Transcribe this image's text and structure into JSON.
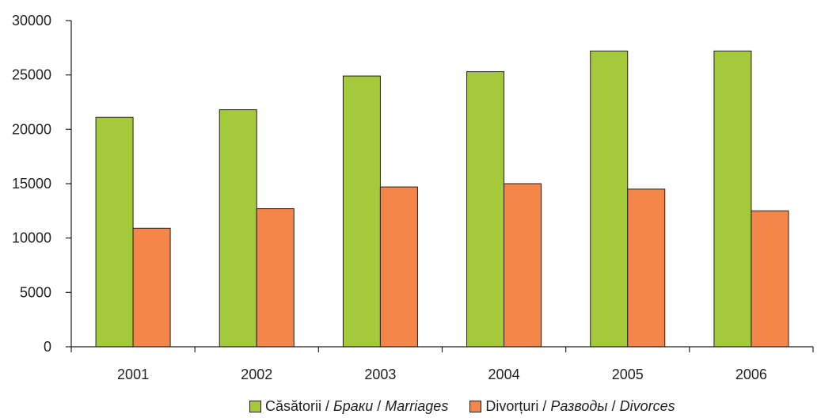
{
  "chart_data": {
    "type": "bar",
    "categories": [
      "2001",
      "2002",
      "2003",
      "2004",
      "2005",
      "2006"
    ],
    "series": [
      {
        "name": "Căsătorii / Браки / Marriages",
        "values": [
          21100,
          21800,
          24900,
          25300,
          27200,
          27200
        ],
        "color": "#a4c93b"
      },
      {
        "name": "Divorțuri / Разводы / Divorces",
        "values": [
          10900,
          12700,
          14700,
          15000,
          14500,
          12500
        ],
        "color": "#f4864a"
      }
    ],
    "ylim": [
      0,
      30000
    ],
    "yticks": [
      "0",
      "5000",
      "10000",
      "15000",
      "20000",
      "25000",
      "30000"
    ],
    "grid": false,
    "legend_placement": "bottom",
    "legend": [
      {
        "plain1": "Căsătorii / ",
        "italic1": "Браки",
        "plain2": " / ",
        "italic2": "Marriages"
      },
      {
        "plain1": "Divorțuri / ",
        "italic1": "Разводы",
        "plain2": " / ",
        "italic2": "Divorces"
      }
    ]
  }
}
